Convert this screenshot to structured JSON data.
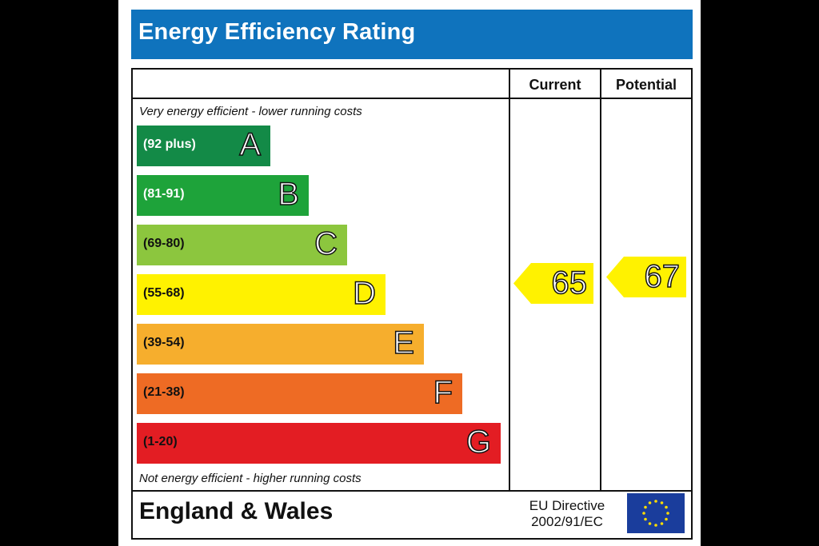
{
  "header": {
    "title": "Energy Efficiency Rating"
  },
  "columns": {
    "current": "Current",
    "potential": "Potential"
  },
  "notes": {
    "top": "Very energy efficient - lower running costs",
    "bottom": "Not energy efficient - higher running costs"
  },
  "chart_data": {
    "type": "bar",
    "bands": [
      {
        "letter": "A",
        "range": "(92 plus)",
        "color": "#138a47"
      },
      {
        "letter": "B",
        "range": "(81-91)",
        "color": "#1ea33a"
      },
      {
        "letter": "C",
        "range": "(69-80)",
        "color": "#8cc63e"
      },
      {
        "letter": "D",
        "range": "(55-68)",
        "color": "#fff200"
      },
      {
        "letter": "E",
        "range": "(39-54)",
        "color": "#f6ae2d"
      },
      {
        "letter": "F",
        "range": "(21-38)",
        "color": "#ee6b24"
      },
      {
        "letter": "G",
        "range": "(1-20)",
        "color": "#e31d23"
      }
    ],
    "current": {
      "value": 65,
      "band": "D",
      "color": "#fff200"
    },
    "potential": {
      "value": 67,
      "band": "D",
      "color": "#fff200"
    }
  },
  "footer": {
    "region": "England & Wales",
    "directive_line1": "EU Directive",
    "directive_line2": "2002/91/EC"
  }
}
